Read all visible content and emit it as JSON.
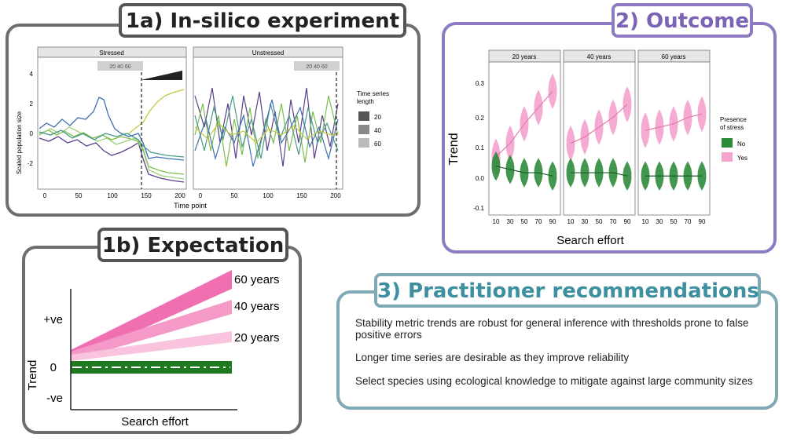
{
  "panel_1a": {
    "title": "1a) In-silico experiment",
    "facets": [
      "Stressed",
      "Unstressed"
    ],
    "ylabel": "Scaled population size",
    "xlabel": "Time point",
    "y_ticks": [
      "4",
      "2",
      "0",
      "-2"
    ],
    "x_ticks": [
      "0",
      "50",
      "100",
      "150",
      "200"
    ],
    "window_labels": [
      "20 40 60",
      "20 40 60"
    ],
    "legend_title_line1": "Time series",
    "legend_title_line2": "length",
    "legend_items": [
      "20",
      "40",
      "60"
    ],
    "colors": {
      "green": "#7bbf4a",
      "purple": "#5b3f8c",
      "blue": "#3f6fb3",
      "yellow": "#c8c83c",
      "teal": "#4a9a8a"
    }
  },
  "panel_1b": {
    "title": "1b) Expectation",
    "ylabel": "Trend",
    "xlabel": "Search effort",
    "y_ticks": [
      "+ve",
      "0",
      "-ve"
    ],
    "lines": [
      "60 years",
      "40 years",
      "20 years"
    ],
    "colors": {
      "pink_dark": "#f06fb0",
      "pink_mid": "#f59ac8",
      "pink_light": "#f9c2dd",
      "green": "#1f7a1f"
    }
  },
  "panel_2": {
    "title": "2) Outcome",
    "ylabel": "Trend",
    "xlabel": "Search effort",
    "facets": [
      "20 years",
      "40 years",
      "60 years"
    ],
    "y_ticks": [
      "0.3",
      "0.2",
      "0.1",
      "0.0",
      "-0.1"
    ],
    "x_ticks": [
      "10",
      "30",
      "50",
      "70",
      "90"
    ],
    "legend_title_line1": "Presence",
    "legend_title_line2": "of stress",
    "legend_items": [
      "No",
      "Yes"
    ],
    "colors": {
      "no": "#2e8b3a",
      "yes": "#f4a6cf",
      "border": "#8e7cc3"
    }
  },
  "panel_3": {
    "title": "3) Practitioner recommendations",
    "recommendations": [
      "Stability metric trends are robust for general inference with thresholds prone to false positive errors",
      "Longer time series are desirable as they improve reliability",
      "Select species using ecological knowledge to mitigate against large community sizes"
    ],
    "colors": {
      "accent": "#3e8fa0",
      "border": "#7fa9b5"
    }
  },
  "chart_data": [
    {
      "type": "line",
      "title": "1a) In-silico experiment",
      "facets": [
        "Stressed",
        "Unstressed"
      ],
      "xlabel": "Time point",
      "ylabel": "Scaled population size",
      "xlim": [
        0,
        200
      ],
      "ylim": [
        -3,
        4.5
      ],
      "legend": {
        "title": "Time series length",
        "items": [
          "20",
          "40",
          "60"
        ],
        "placement": "right"
      }
    },
    {
      "type": "line",
      "title": "1b) Expectation",
      "xlabel": "Search effort",
      "ylabel": "Trend",
      "series": [
        {
          "name": "60 years",
          "start": 1,
          "end": 3.4
        },
        {
          "name": "40 years",
          "start": 1,
          "end": 2.4
        },
        {
          "name": "20 years",
          "start": 1,
          "end": 1.5
        },
        {
          "name": "No stress",
          "start": 0,
          "end": 0
        }
      ]
    },
    {
      "type": "violin",
      "title": "2) Outcome",
      "facets": [
        "20 years",
        "40 years",
        "60 years"
      ],
      "categories": [
        "10",
        "30",
        "50",
        "70",
        "90"
      ],
      "xlabel": "Search effort",
      "ylabel": "Trend",
      "ylim": [
        -0.12,
        0.35
      ],
      "series": [
        {
          "name": "Yes",
          "facet": "20 years",
          "values": [
            0.06,
            0.1,
            0.16,
            0.21,
            0.26
          ]
        },
        {
          "name": "Yes",
          "facet": "40 years",
          "values": [
            0.1,
            0.12,
            0.15,
            0.18,
            0.22
          ]
        },
        {
          "name": "Yes",
          "facet": "60 years",
          "values": [
            0.14,
            0.15,
            0.16,
            0.18,
            0.19
          ]
        },
        {
          "name": "No",
          "facet": "20 years",
          "values": [
            0.03,
            0.02,
            0.01,
            0.01,
            0.0
          ]
        },
        {
          "name": "No",
          "facet": "40 years",
          "values": [
            0.01,
            0.01,
            0.01,
            0.01,
            0.0
          ]
        },
        {
          "name": "No",
          "facet": "60 years",
          "values": [
            0.0,
            0.0,
            0.0,
            0.0,
            0.0
          ]
        }
      ],
      "legend": {
        "title": "Presence of stress",
        "items": [
          "No",
          "Yes"
        ],
        "placement": "right"
      }
    }
  ]
}
